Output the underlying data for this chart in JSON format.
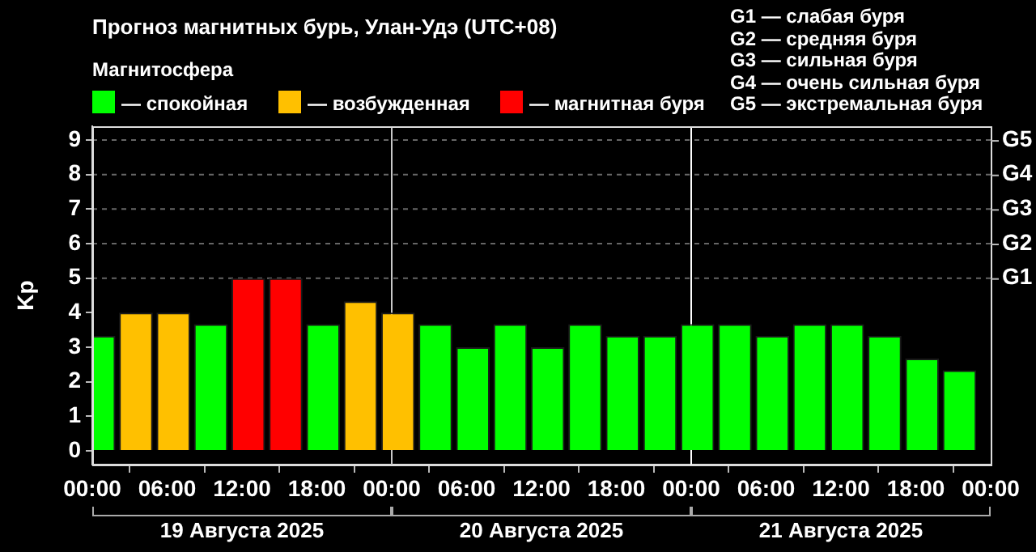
{
  "chart_data": {
    "type": "bar",
    "title": "Прогноз магнитных бурь, Улан-Удэ (UTC+08)",
    "legend_title": "Магнитосфера",
    "ylabel": "Kp",
    "x": [
      "2025-08-19T00:30",
      "2025-08-19T03:30",
      "2025-08-19T06:30",
      "2025-08-19T09:30",
      "2025-08-19T12:30",
      "2025-08-19T15:30",
      "2025-08-19T18:30",
      "2025-08-19T21:30",
      "2025-08-20T00:30",
      "2025-08-20T03:30",
      "2025-08-20T06:30",
      "2025-08-20T09:30",
      "2025-08-20T12:30",
      "2025-08-20T15:30",
      "2025-08-20T18:30",
      "2025-08-20T21:30",
      "2025-08-21T00:30",
      "2025-08-21T03:30",
      "2025-08-21T06:30",
      "2025-08-21T09:30",
      "2025-08-21T12:30",
      "2025-08-21T15:30",
      "2025-08-21T18:30",
      "2025-08-21T21:30"
    ],
    "series": [
      {
        "name": "— спокойная",
        "color": "#00ff00",
        "values": [
          3.33,
          null,
          null,
          3.67,
          null,
          null,
          3.67,
          null,
          null,
          3.67,
          3.0,
          3.67,
          3.0,
          3.67,
          3.33,
          3.33,
          3.67,
          3.67,
          3.33,
          3.67,
          3.67,
          3.33,
          2.67,
          2.33
        ]
      },
      {
        "name": "— возбужденная",
        "color": "#ffc000",
        "values": [
          null,
          4.0,
          4.0,
          null,
          null,
          null,
          null,
          4.33,
          4.0,
          null,
          null,
          null,
          null,
          null,
          null,
          null,
          null,
          null,
          null,
          null,
          null,
          null,
          null,
          null
        ]
      },
      {
        "name": "— магнитная буря",
        "color": "#ff0000",
        "values": [
          null,
          null,
          null,
          null,
          5.0,
          5.0,
          null,
          null,
          null,
          null,
          null,
          null,
          null,
          null,
          null,
          null,
          null,
          null,
          null,
          null,
          null,
          null,
          null,
          null
        ]
      }
    ],
    "xlim": [
      "2025-08-19T00:00",
      "2025-08-22T00:00"
    ],
    "xticks": [
      {
        "value": "2025-08-19T00:00",
        "label": "00:00"
      },
      {
        "value": "2025-08-19T06:00",
        "label": "06:00"
      },
      {
        "value": "2025-08-19T12:00",
        "label": "12:00"
      },
      {
        "value": "2025-08-19T18:00",
        "label": "18:00"
      },
      {
        "value": "2025-08-20T00:00",
        "label": "00:00"
      },
      {
        "value": "2025-08-20T06:00",
        "label": "06:00"
      },
      {
        "value": "2025-08-20T12:00",
        "label": "12:00"
      },
      {
        "value": "2025-08-20T18:00",
        "label": "18:00"
      },
      {
        "value": "2025-08-21T00:00",
        "label": "00:00"
      },
      {
        "value": "2025-08-21T06:00",
        "label": "06:00"
      },
      {
        "value": "2025-08-21T12:00",
        "label": "12:00"
      },
      {
        "value": "2025-08-21T18:00",
        "label": "18:00"
      },
      {
        "value": "2025-08-22T00:00",
        "label": "00:00"
      }
    ],
    "ylim": [
      -0.4,
      9.4
    ],
    "yticks": [
      0,
      1,
      2,
      3,
      4,
      5,
      6,
      7,
      8,
      9
    ],
    "legend": "top left",
    "ref_lines": [
      {
        "axis": "x",
        "value": "2025-08-20T00:00",
        "color": "#c8c8c8"
      },
      {
        "axis": "x",
        "value": "2025-08-21T00:00",
        "color": "#ffffff"
      },
      {
        "axis": "y",
        "value": 5,
        "label": "G1",
        "color": "#666666",
        "line_style": "dashed"
      },
      {
        "axis": "y",
        "value": 6,
        "label": "G2",
        "color": "#666666",
        "line_style": "dashed"
      },
      {
        "axis": "y",
        "value": 7,
        "label": "G3",
        "color": "#666666",
        "line_style": "dashed"
      },
      {
        "axis": "y",
        "value": 8,
        "label": "G4",
        "color": "#666666",
        "line_style": "dashed"
      },
      {
        "axis": "y",
        "value": 9,
        "label": "G5",
        "color": "#666666",
        "line_style": "dashed"
      }
    ],
    "annotations": [
      "19 Августа 2025",
      "20 Августа 2025",
      "21 Августа 2025",
      "G1 — слабая буря",
      "G2 — средняя буря",
      "G3 — сильная буря",
      "G4 — очень сильная буря",
      "G5 — экстремальная буря"
    ]
  }
}
